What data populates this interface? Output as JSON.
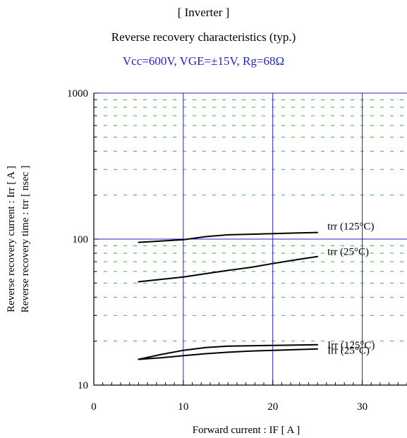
{
  "header": {
    "section": "[ Inverter ]",
    "title": "Reverse recovery characteristics  (typ.)",
    "conditions": "Vcc=600V, VGE=±15V, Rg=68Ω",
    "conditions_color": "#2222cc"
  },
  "chart_data": {
    "type": "line",
    "xlabel": "Forward current  :  IF  [ A ]",
    "ylabel_lines": [
      "Reverse recovery current  :  Irr  [ A ]",
      "Reverse recovery time  :  trr  [ nsec ]"
    ],
    "xlim": [
      0,
      35
    ],
    "ylim": [
      10,
      1000
    ],
    "y_scale": "log",
    "x_major_ticks": [
      0,
      10,
      20,
      30
    ],
    "x_tick_labels": [
      "0",
      "10",
      "20",
      "30"
    ],
    "y_tick_labels": [
      "10",
      "100",
      "1000"
    ],
    "y_major_ticks": [
      10,
      100,
      1000
    ],
    "grid": {
      "major": true,
      "major_color": "#2222cc",
      "minor": true,
      "minor_color": "#33bb33",
      "minor_style": "dashed"
    },
    "series": [
      {
        "name": "trr (125°C)",
        "x": [
          5,
          7.5,
          10,
          12.5,
          15,
          17.5,
          20,
          22.5,
          25
        ],
        "y": [
          95,
          97,
          99,
          104,
          107,
          108,
          109,
          110,
          111
        ]
      },
      {
        "name": "trr (25°C)",
        "x": [
          5,
          7.5,
          10,
          12.5,
          15,
          17.5,
          20,
          22.5,
          25
        ],
        "y": [
          51,
          53,
          55,
          58,
          61,
          64,
          68,
          72,
          76
        ]
      },
      {
        "name": "Irr (125°C)",
        "x": [
          5,
          7.5,
          10,
          12.5,
          15,
          17.5,
          20,
          22.5,
          25
        ],
        "y": [
          15,
          16.2,
          17.3,
          18.1,
          18.5,
          18.6,
          18.7,
          18.8,
          18.9
        ]
      },
      {
        "name": "Irr (25°C)",
        "x": [
          5,
          7.5,
          10,
          12.5,
          15,
          17.5,
          20,
          22.5,
          25
        ],
        "y": [
          15,
          15.4,
          15.9,
          16.4,
          16.8,
          17.1,
          17.3,
          17.5,
          17.7
        ]
      }
    ]
  }
}
